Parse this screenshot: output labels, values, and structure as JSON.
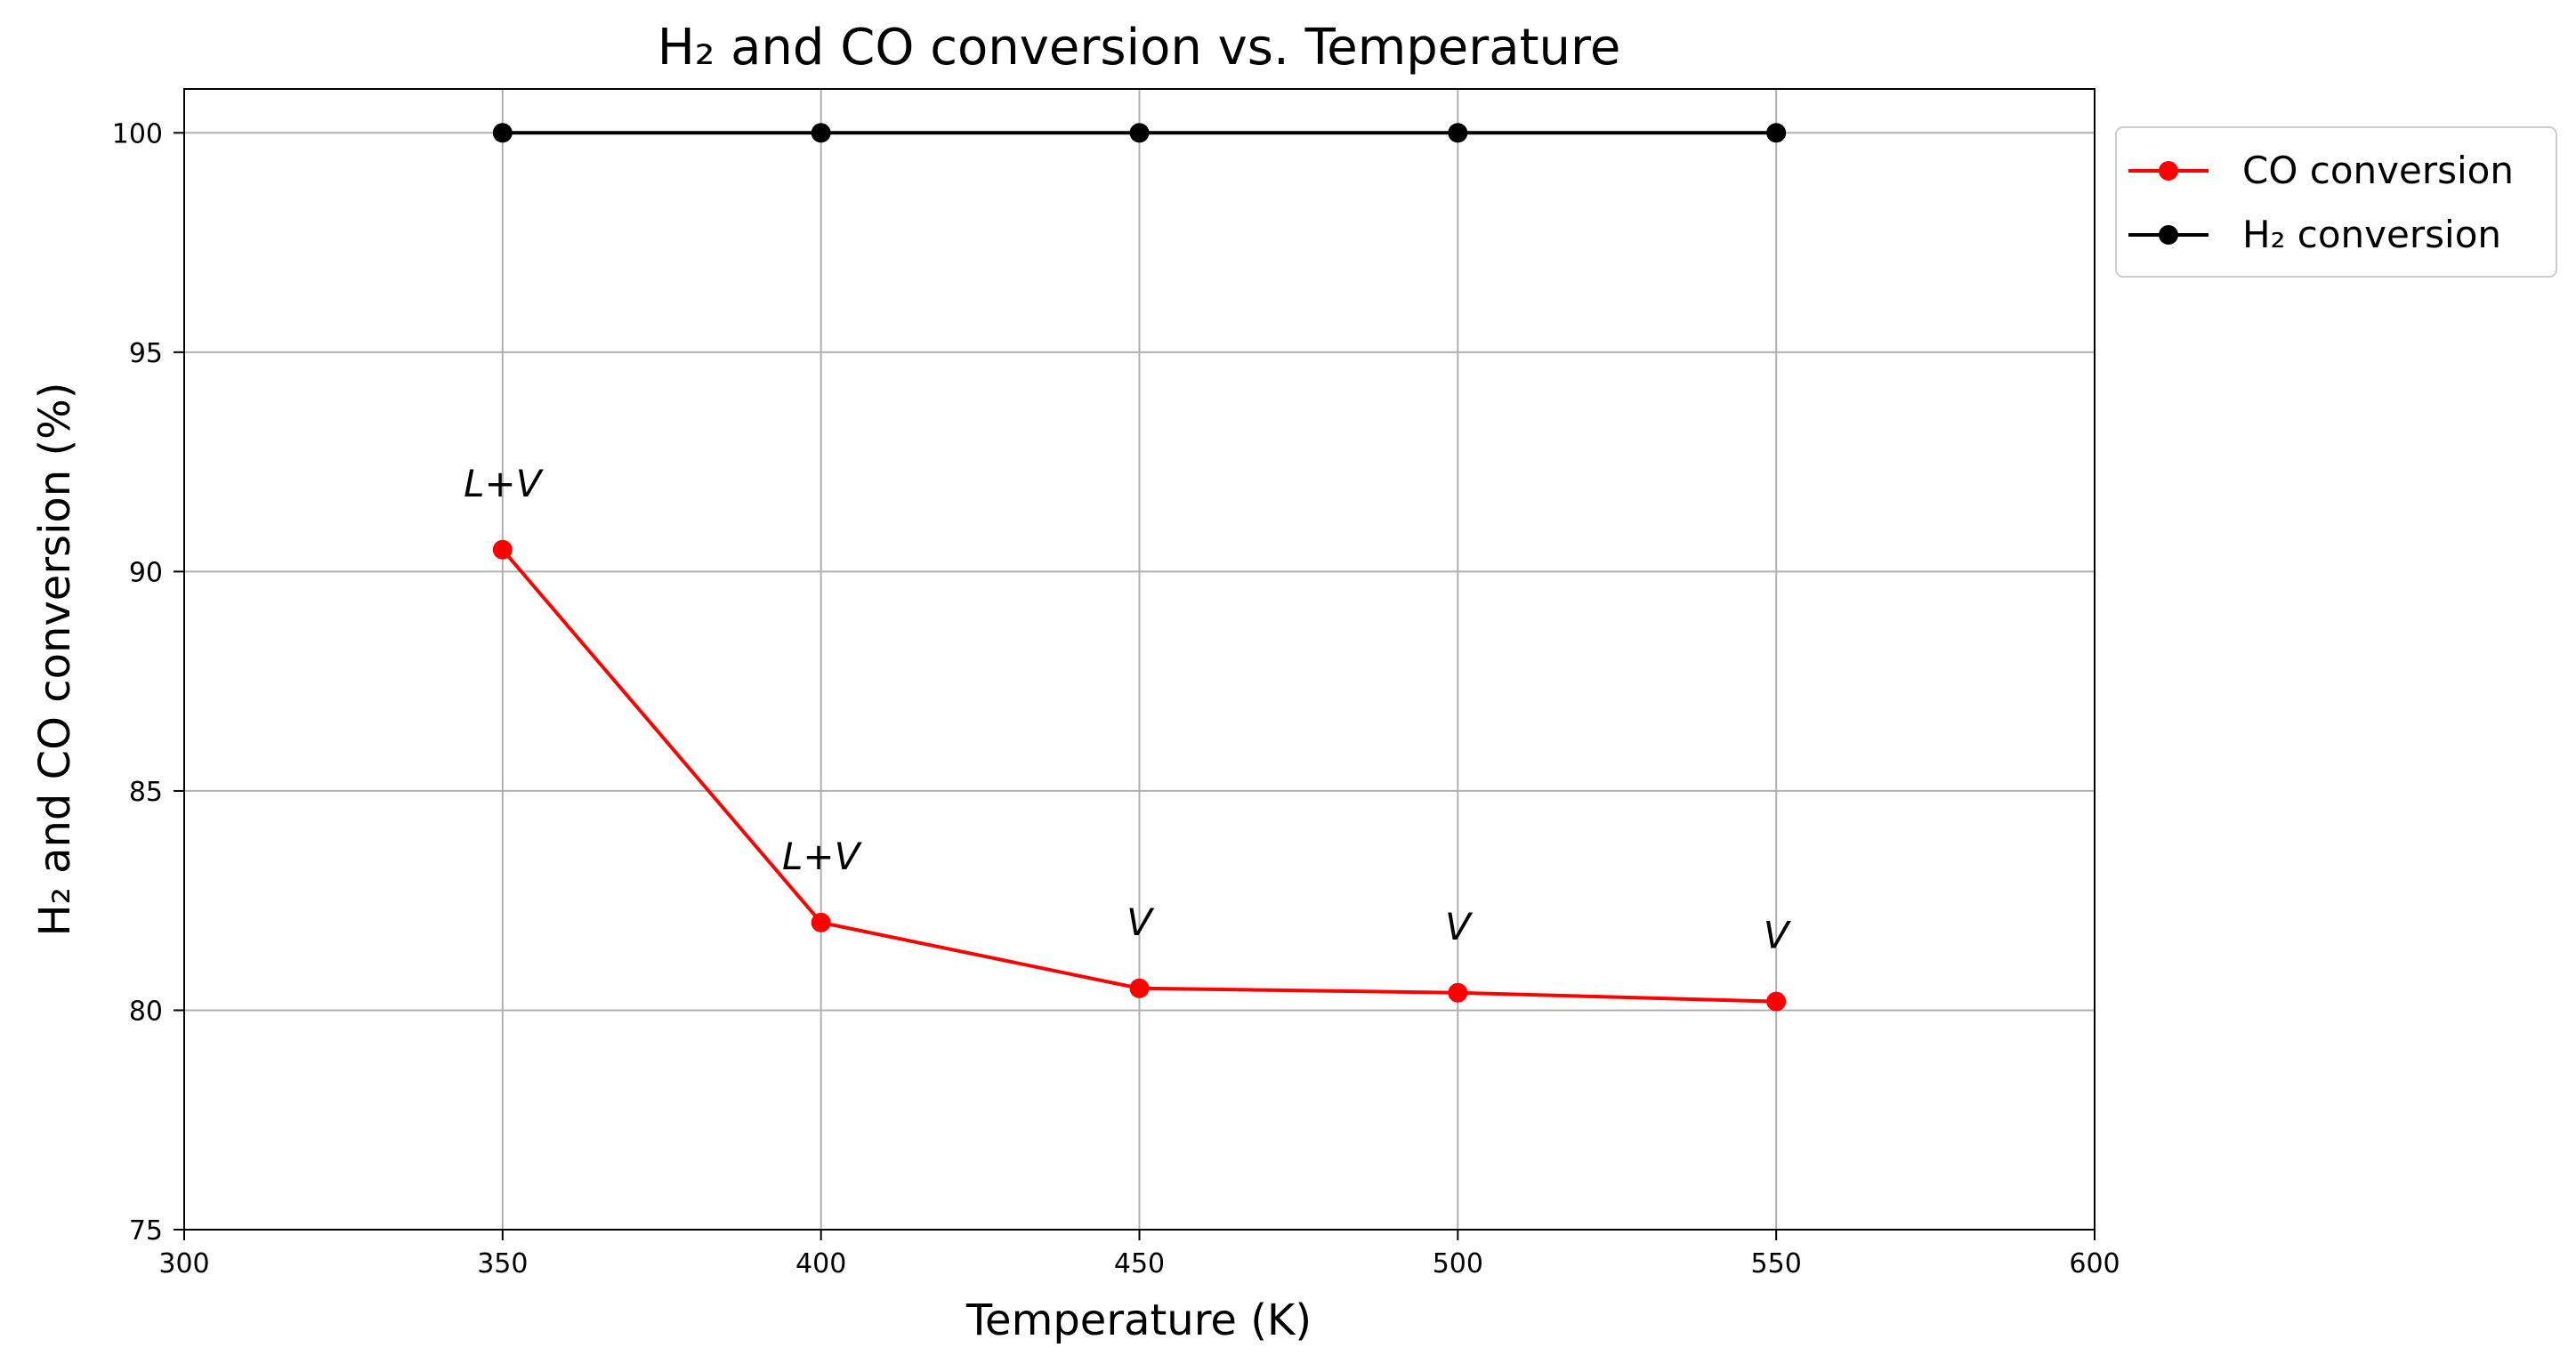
{
  "chart_data": {
    "type": "line",
    "title": "H₂ and CO conversion vs. Temperature",
    "xlabel": "Temperature (K)",
    "ylabel": "H₂ and CO conversion (%)",
    "xlim": [
      300,
      600
    ],
    "ylim": [
      75,
      101
    ],
    "xticks": [
      "300",
      "350",
      "400",
      "450",
      "500",
      "550",
      "600"
    ],
    "yticks": [
      "75",
      "80",
      "85",
      "90",
      "95",
      "100"
    ],
    "grid": true,
    "legend_position": "outside-top-right",
    "series": [
      {
        "name": "CO conversion",
        "color": "#ff0000",
        "x": [
          350,
          400,
          450,
          500,
          550
        ],
        "y": [
          90.5,
          82.0,
          80.5,
          80.4,
          80.2
        ]
      },
      {
        "name": "H₂ conversion",
        "color": "#000000",
        "x": [
          350,
          400,
          450,
          500,
          550
        ],
        "y": [
          100,
          100,
          100,
          100,
          100
        ]
      }
    ],
    "annotations": [
      {
        "text": "L+V",
        "x": 350,
        "y": 92.0
      },
      {
        "text": "L+V",
        "x": 400,
        "y": 83.5
      },
      {
        "text": "V",
        "x": 450,
        "y": 82.0
      },
      {
        "text": "V",
        "x": 500,
        "y": 81.9
      },
      {
        "text": "V",
        "x": 550,
        "y": 81.7
      }
    ]
  }
}
